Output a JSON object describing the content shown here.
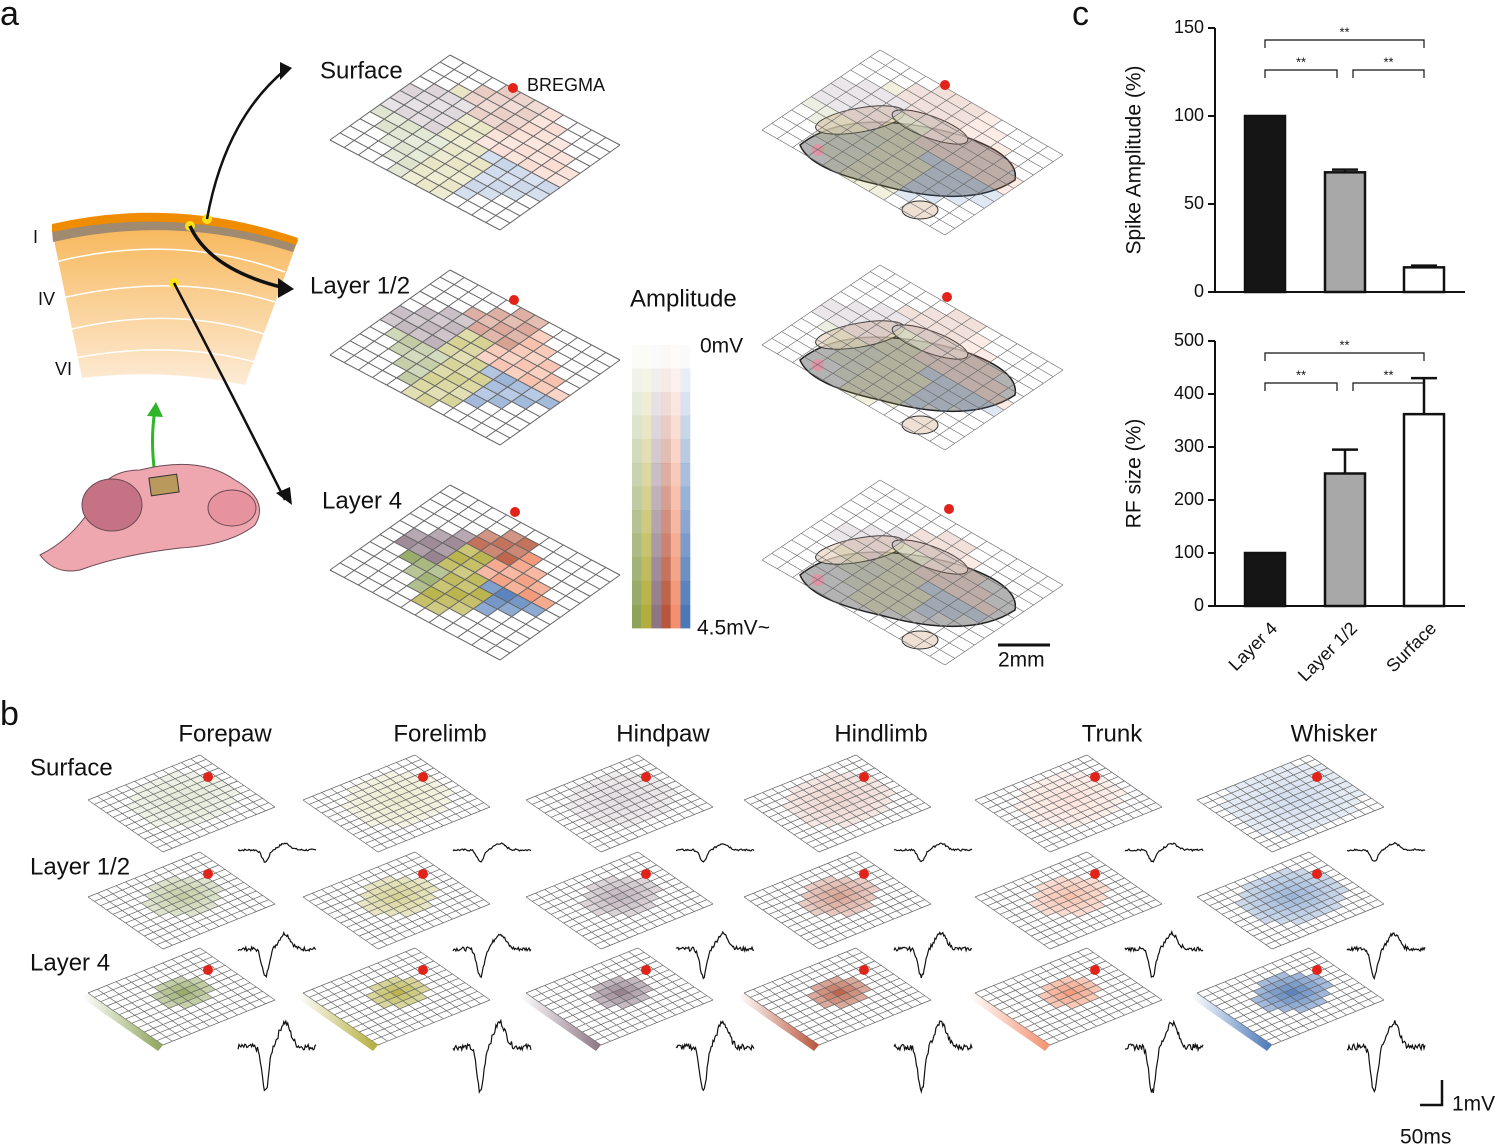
{
  "panel_labels": [
    "a",
    "b",
    "c"
  ],
  "panel_a": {
    "layers": [
      "Surface",
      "Layer 1/2",
      "Layer 4"
    ],
    "bregma": "BREGMA",
    "cortex_layers": [
      "I",
      "IV",
      "VI"
    ],
    "colorbar": {
      "title": "Amplitude",
      "min_label": "0mV",
      "max_label": "4.5mV~"
    },
    "scale_bar": "2mm"
  },
  "panel_b": {
    "columns": [
      "Forepaw",
      "Forelimb",
      "Hindpaw",
      "Hindlimb",
      "Trunk",
      "Whisker"
    ],
    "colors": [
      "#8ea35a",
      "#b3ad3b",
      "#8d7584",
      "#b8553a",
      "#f3906e",
      "#4a78b8"
    ],
    "rows": [
      "Surface",
      "Layer 1/2",
      "Layer 4"
    ],
    "scale_y": "1mV",
    "scale_x": "50ms"
  },
  "chart_data": [
    {
      "type": "bar",
      "y_label": "Spike Amplitude (%)",
      "values": [
        100,
        68,
        14
      ],
      "errors": [
        null,
        1.5,
        1
      ],
      "colors": [
        "#151515",
        "#a8a8a8",
        "#ffffff"
      ],
      "ylim": [
        0,
        150
      ],
      "yticks": [
        0,
        50,
        100,
        150
      ],
      "annotations": [
        "**",
        "**",
        "**"
      ]
    },
    {
      "type": "bar",
      "y_label": "RF size (%)",
      "categories": [
        "Layer 4",
        "Layer 1/2",
        "Surface"
      ],
      "values": [
        100,
        250,
        362
      ],
      "errors": [
        null,
        45,
        68
      ],
      "colors": [
        "#151515",
        "#a8a8a8",
        "#ffffff"
      ],
      "ylim": [
        0,
        500
      ],
      "yticks": [
        0,
        100,
        200,
        300,
        400,
        500
      ],
      "annotations": [
        "**",
        "**",
        "**"
      ]
    }
  ]
}
